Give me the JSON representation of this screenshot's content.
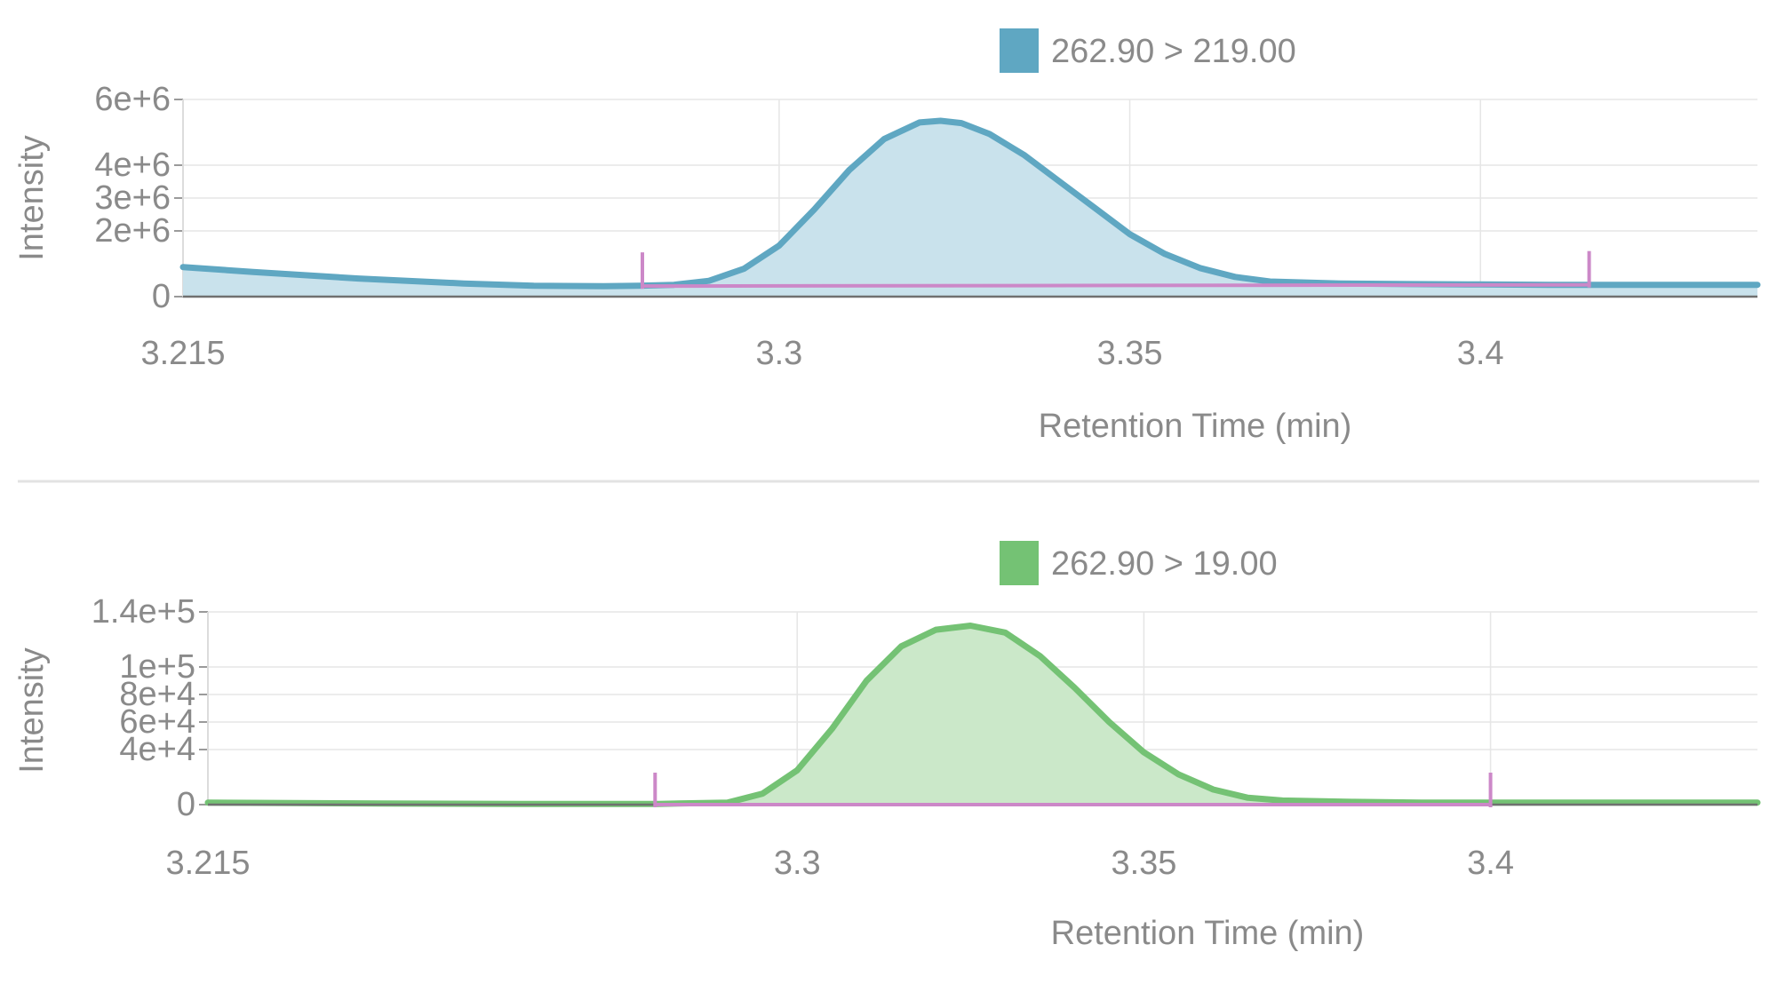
{
  "chart_data": [
    {
      "type": "area",
      "legend": {
        "label": "262.90 > 219.00",
        "color": "#5fa7c2",
        "placement": "top-center"
      },
      "ylabel": "Intensity",
      "xlabel": "Retention Time (min)",
      "xlim": [
        3.215,
        3.4395
      ],
      "ylim": [
        0,
        6000000
      ],
      "x_ticks": [
        {
          "value": 3.215,
          "label": "3.215"
        },
        {
          "value": 3.3,
          "label": "3.3"
        },
        {
          "value": 3.35,
          "label": "3.35"
        },
        {
          "value": 3.4,
          "label": "3.4"
        }
      ],
      "y_ticks": [
        {
          "value": 0,
          "label": "0"
        },
        {
          "value": 2000000,
          "label": "2e+6"
        },
        {
          "value": 3000000,
          "label": "3e+6"
        },
        {
          "value": 4000000,
          "label": "4e+6"
        },
        {
          "value": 6000000,
          "label": "6e+6"
        }
      ],
      "grid": true,
      "series": [
        {
          "name": "262.90 > 219.00",
          "color": "#5fa7c2",
          "fill": "#c9e2ec",
          "x": [
            3.215,
            3.225,
            3.24,
            3.255,
            3.265,
            3.275,
            3.28,
            3.285,
            3.29,
            3.295,
            3.3,
            3.305,
            3.31,
            3.315,
            3.32,
            3.323,
            3.326,
            3.33,
            3.335,
            3.34,
            3.345,
            3.35,
            3.355,
            3.36,
            3.365,
            3.37,
            3.38,
            3.39,
            3.4,
            3.41,
            3.42,
            3.4395
          ],
          "y": [
            900000,
            750000,
            550000,
            400000,
            330000,
            320000,
            330000,
            360000,
            480000,
            850000,
            1550000,
            2650000,
            3850000,
            4800000,
            5300000,
            5350000,
            5280000,
            4950000,
            4300000,
            3500000,
            2700000,
            1900000,
            1300000,
            870000,
            600000,
            460000,
            400000,
            380000,
            370000,
            360000,
            360000,
            360000
          ]
        }
      ],
      "peak_integration": {
        "color": "#cc88c8",
        "start": {
          "x": 3.2805,
          "y": 320000
        },
        "end": {
          "x": 3.4155,
          "y": 360000
        }
      }
    },
    {
      "type": "area",
      "legend": {
        "label": "262.90 > 19.00",
        "color": "#74c274",
        "placement": "top-center"
      },
      "ylabel": "Intensity",
      "xlabel": "Retention Time (min)",
      "xlim": [
        3.215,
        3.4385
      ],
      "ylim": [
        0,
        140000
      ],
      "x_ticks": [
        {
          "value": 3.215,
          "label": "3.215"
        },
        {
          "value": 3.3,
          "label": "3.3"
        },
        {
          "value": 3.35,
          "label": "3.35"
        },
        {
          "value": 3.4,
          "label": "3.4"
        }
      ],
      "y_ticks": [
        {
          "value": 0,
          "label": "0"
        },
        {
          "value": 40000,
          "label": "4e+4"
        },
        {
          "value": 60000,
          "label": "6e+4"
        },
        {
          "value": 80000,
          "label": "8e+4"
        },
        {
          "value": 100000,
          "label": "1e+5"
        },
        {
          "value": 140000,
          "label": "1.4e+5"
        }
      ],
      "grid": true,
      "series": [
        {
          "name": "262.90 > 19.00",
          "color": "#74c274",
          "fill": "#cbe8c9",
          "x": [
            3.215,
            3.24,
            3.26,
            3.28,
            3.29,
            3.295,
            3.3,
            3.305,
            3.31,
            3.315,
            3.32,
            3.325,
            3.33,
            3.335,
            3.34,
            3.345,
            3.35,
            3.355,
            3.36,
            3.365,
            3.37,
            3.38,
            3.39,
            3.4,
            3.41,
            3.42,
            3.4385
          ],
          "y": [
            1500,
            800,
            500,
            500,
            1500,
            8000,
            25000,
            55000,
            90000,
            115000,
            127000,
            130000,
            125000,
            108000,
            85000,
            60000,
            38000,
            22000,
            11000,
            5000,
            3000,
            2000,
            1500,
            1500,
            1500,
            1500,
            1500
          ]
        }
      ],
      "peak_integration": {
        "color": "#cc88c8",
        "start": {
          "x": 3.2795,
          "y": 0
        },
        "end": {
          "x": 3.4,
          "y": 0
        }
      }
    }
  ]
}
